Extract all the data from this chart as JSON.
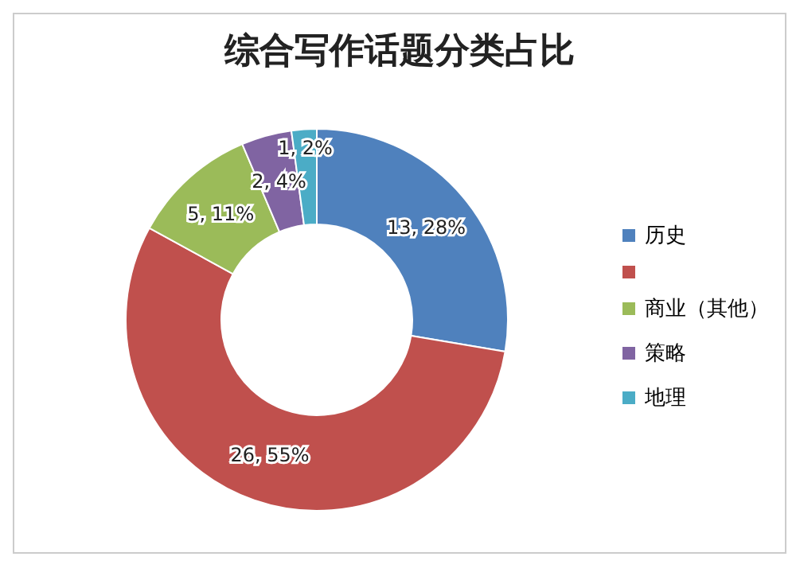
{
  "chart_data": {
    "type": "donut",
    "title": "综合写作话题分类占比",
    "categories": [
      "历史",
      null,
      "商业（其他）",
      "策略",
      "地理"
    ],
    "values": [
      13,
      26,
      5,
      2,
      1
    ],
    "colors": [
      "#4f81bd",
      "#c0504d",
      "#9bbb59",
      "#8064a2",
      "#4bacc6"
    ],
    "value_labels": [
      "13, 28%",
      "26, 55%",
      "5, 11%",
      "2, 4%",
      "1, 2%"
    ],
    "legend": "right"
  }
}
